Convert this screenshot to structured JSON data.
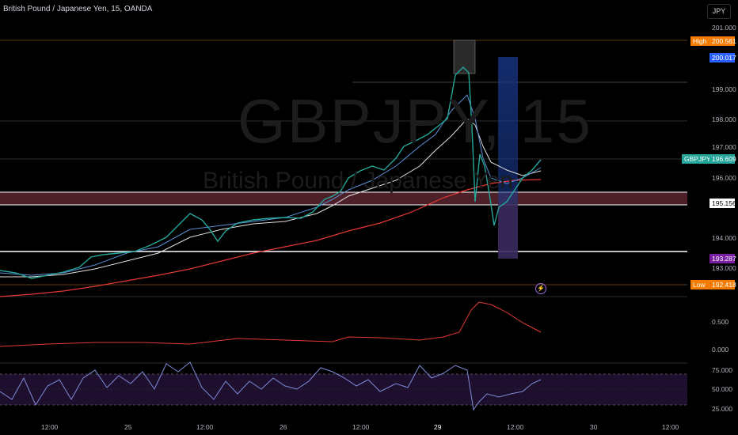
{
  "symbol_title": "British Pound / Japanese Yen, 15, OANDA",
  "watermark": {
    "ticker": "GBPJPY, 15",
    "name": "British Pound / Japanese Yen"
  },
  "currency_button": "JPY",
  "price_axis": [
    "201.000",
    "199.000",
    "198.000",
    "197.000",
    "196.000",
    "194.000",
    "193.000"
  ],
  "indicator_axis": [
    "0.500",
    "0.000"
  ],
  "rsi_axis": [
    "75.000",
    "50.000",
    "25.000"
  ],
  "time_axis": [
    "12:00",
    "25",
    "12:00",
    "26",
    "12:00",
    "29",
    "12:00",
    "30",
    "12:00"
  ],
  "price_tags": {
    "high_label": "High",
    "high_value": "200.561",
    "level_1": "200.017",
    "symbol_label": "GBPJPY",
    "last_value": "196.609",
    "level_2": "195.156",
    "level_3": "193.287",
    "low_label": "Low",
    "low_value": "192.418"
  },
  "colors": {
    "up": "#26a69a",
    "down": "#ef5350",
    "ma_long": "#e53935",
    "ma_short": "#e0e0e0",
    "ma_mid": "#5b8fd6",
    "zone": "#6b2e35",
    "rsi_line": "#7e8bd9"
  },
  "icons": {
    "alert": "lightning-icon"
  }
}
